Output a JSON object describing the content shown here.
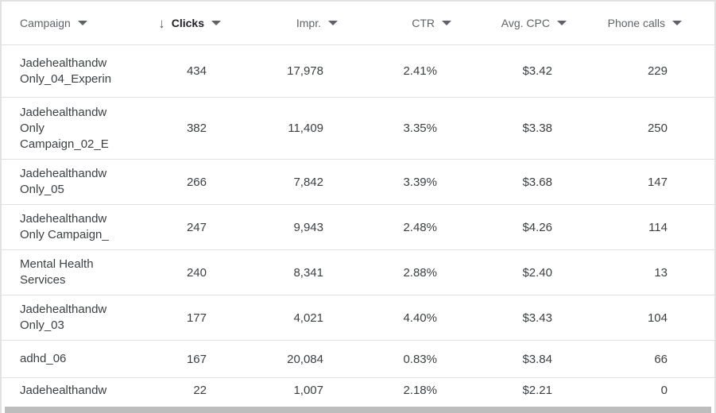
{
  "table": {
    "sort_icon": "↓",
    "columns": [
      {
        "label": "Campaign"
      },
      {
        "label": "Clicks",
        "sorted": "descending"
      },
      {
        "label": "Impr."
      },
      {
        "label": "CTR"
      },
      {
        "label": "Avg. CPC"
      },
      {
        "label": "Phone calls"
      }
    ],
    "rows": [
      {
        "campaign_lines": [
          "Jadehealthandw",
          "Only_04_Experin"
        ],
        "clicks": "434",
        "impr": "17,978",
        "ctr": "2.41%",
        "avg_cpc": "$3.42",
        "phone_calls": "229"
      },
      {
        "campaign_lines": [
          "Jadehealthandw",
          "Only",
          "Campaign_02_E"
        ],
        "clicks": "382",
        "impr": "11,409",
        "ctr": "3.35%",
        "avg_cpc": "$3.38",
        "phone_calls": "250"
      },
      {
        "campaign_lines": [
          "Jadehealthandw",
          "Only_05"
        ],
        "clicks": "266",
        "impr": "7,842",
        "ctr": "3.39%",
        "avg_cpc": "$3.68",
        "phone_calls": "147"
      },
      {
        "campaign_lines": [
          "Jadehealthandw",
          "Only Campaign_"
        ],
        "clicks": "247",
        "impr": "9,943",
        "ctr": "2.48%",
        "avg_cpc": "$4.26",
        "phone_calls": "114"
      },
      {
        "campaign_lines": [
          "Mental Health",
          "Services"
        ],
        "clicks": "240",
        "impr": "8,341",
        "ctr": "2.88%",
        "avg_cpc": "$2.40",
        "phone_calls": "13"
      },
      {
        "campaign_lines": [
          "Jadehealthandw",
          "Only_03"
        ],
        "clicks": "177",
        "impr": "4,021",
        "ctr": "4.40%",
        "avg_cpc": "$3.43",
        "phone_calls": "104"
      },
      {
        "campaign_lines": [
          "adhd_06"
        ],
        "clicks": "167",
        "impr": "20,084",
        "ctr": "0.83%",
        "avg_cpc": "$3.84",
        "phone_calls": "66"
      },
      {
        "campaign_lines": [
          "Jadehealthandw"
        ],
        "clicks": "22",
        "impr": "1,007",
        "ctr": "2.18%",
        "avg_cpc": "$2.21",
        "phone_calls": "0"
      }
    ]
  },
  "colors": {
    "header_text": "#5f6368",
    "sorted_header_text": "#202124",
    "body_text": "#3c4043",
    "row_border": "#e0e0e0",
    "scrollbar_thumb": "#bdbdbd"
  }
}
